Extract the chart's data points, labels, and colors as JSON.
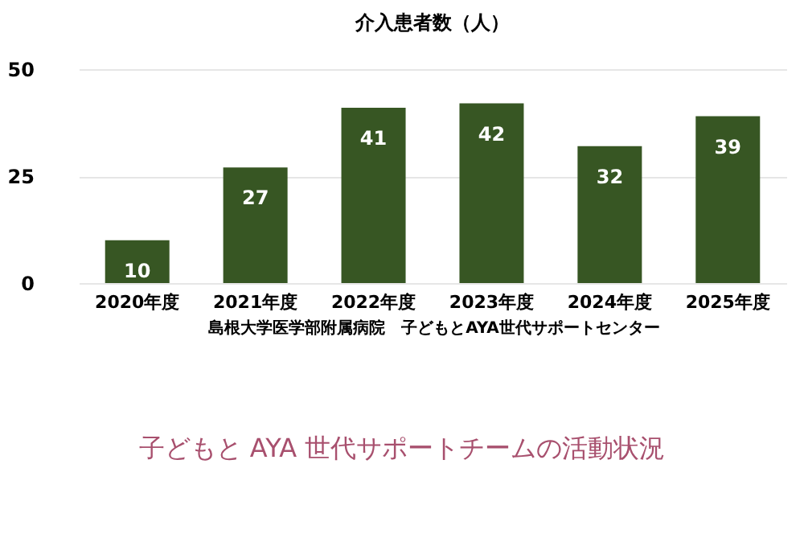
{
  "chart_data": {
    "type": "bar",
    "title": "介入患者数（人）",
    "categories": [
      "2020年度",
      "2021年度",
      "2022年度",
      "2023年度",
      "2024年度",
      "2025年度"
    ],
    "values": [
      10,
      27,
      41,
      42,
      32,
      39
    ],
    "color": "#375623",
    "ylim": [
      0,
      50
    ],
    "yticks": [
      0,
      25,
      50
    ],
    "grid": "y",
    "data_labels": true,
    "annotations": [
      "島根大学医学部附属病院　子どもとAYA世代サポートセンター",
      "子どもと AYA 世代サポートチームの活動状況"
    ]
  }
}
